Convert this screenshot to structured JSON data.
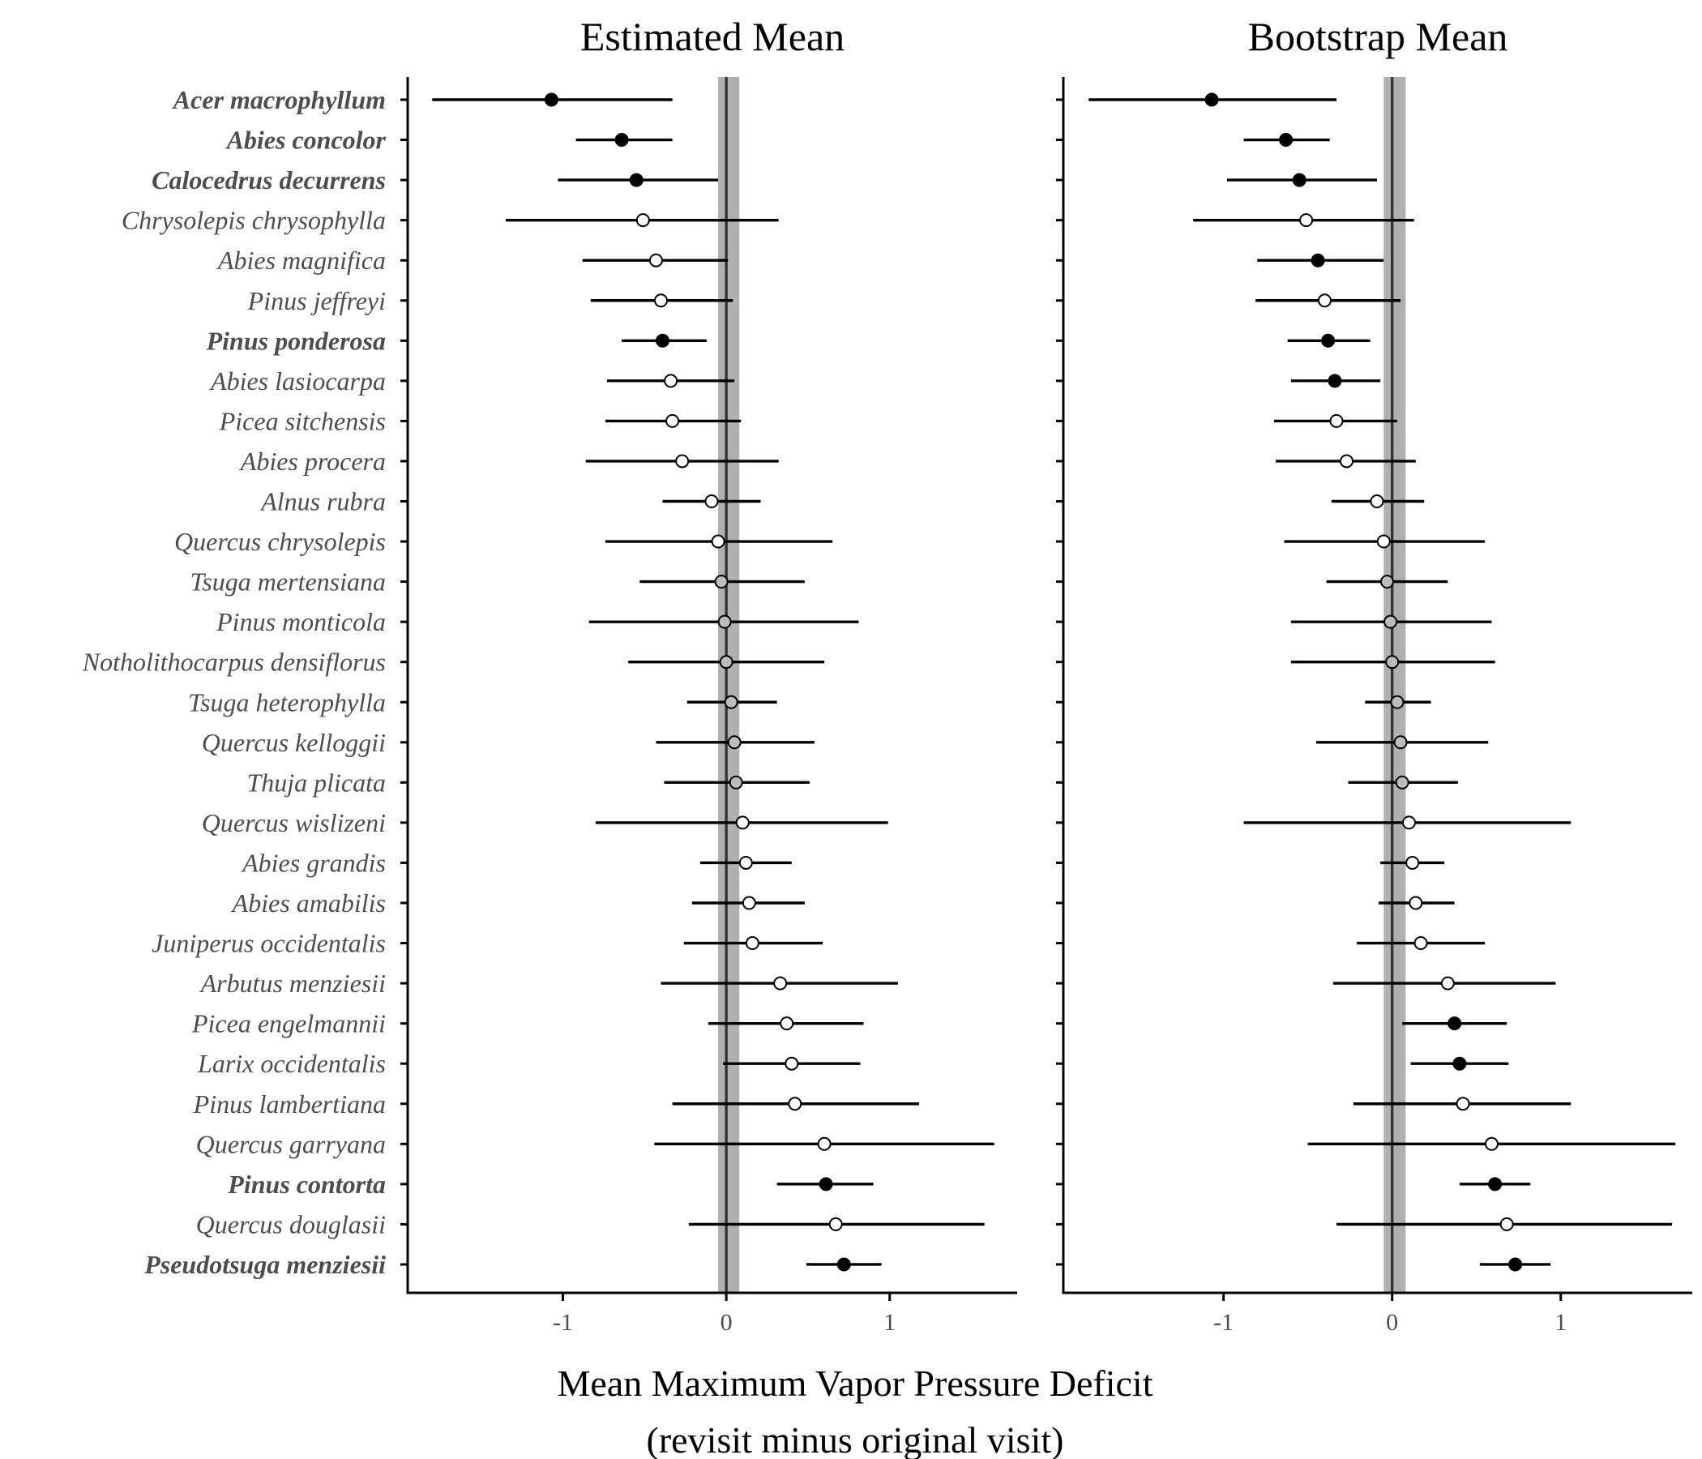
{
  "chart_data": {
    "type": "scatter",
    "subtype": "dot-and-whisker",
    "xlabel_lines": [
      "Mean Maximum Vapor Pressure Deficit",
      "(revisit minus original visit)"
    ],
    "xlim": [
      -1.95,
      1.78
    ],
    "xticks": [
      -1,
      0,
      1
    ],
    "xtick_labels": [
      "-1",
      "0",
      "1"
    ],
    "reference_band": [
      -0.05,
      0.08
    ],
    "reference_line": 0,
    "point_colors": {
      "filled": "#000000",
      "open": "#ffffff",
      "grey": "#bdbdbd"
    },
    "species": [
      {
        "name": "Acer macrophyllum",
        "bold": true
      },
      {
        "name": "Abies concolor",
        "bold": true
      },
      {
        "name": "Calocedrus decurrens",
        "bold": true
      },
      {
        "name": "Chrysolepis chrysophylla",
        "bold": false
      },
      {
        "name": "Abies magnifica",
        "bold": false
      },
      {
        "name": "Pinus jeffreyi",
        "bold": false
      },
      {
        "name": "Pinus ponderosa",
        "bold": true
      },
      {
        "name": "Abies lasiocarpa",
        "bold": false
      },
      {
        "name": "Picea sitchensis",
        "bold": false
      },
      {
        "name": "Abies procera",
        "bold": false
      },
      {
        "name": "Alnus rubra",
        "bold": false
      },
      {
        "name": "Quercus chrysolepis",
        "bold": false
      },
      {
        "name": "Tsuga mertensiana",
        "bold": false
      },
      {
        "name": "Pinus monticola",
        "bold": false
      },
      {
        "name": "Notholithocarpus densiflorus",
        "bold": false
      },
      {
        "name": "Tsuga heterophylla",
        "bold": false
      },
      {
        "name": "Quercus kelloggii",
        "bold": false
      },
      {
        "name": "Thuja plicata",
        "bold": false
      },
      {
        "name": "Quercus wislizeni",
        "bold": false
      },
      {
        "name": "Abies grandis",
        "bold": false
      },
      {
        "name": "Abies amabilis",
        "bold": false
      },
      {
        "name": "Juniperus occidentalis",
        "bold": false
      },
      {
        "name": "Arbutus menziesii",
        "bold": false
      },
      {
        "name": "Picea engelmannii",
        "bold": false
      },
      {
        "name": "Larix occidentalis",
        "bold": false
      },
      {
        "name": "Pinus lambertiana",
        "bold": false
      },
      {
        "name": "Quercus garryana",
        "bold": false
      },
      {
        "name": "Pinus contorta",
        "bold": true
      },
      {
        "name": "Quercus douglasii",
        "bold": false
      },
      {
        "name": "Pseudotsuga menziesii",
        "bold": true
      }
    ],
    "panels": [
      {
        "title": "Estimated Mean",
        "points": [
          {
            "mean": -1.07,
            "lo": -1.8,
            "hi": -0.33,
            "fill": "filled"
          },
          {
            "mean": -0.64,
            "lo": -0.92,
            "hi": -0.33,
            "fill": "filled"
          },
          {
            "mean": -0.55,
            "lo": -1.03,
            "hi": -0.05,
            "fill": "filled"
          },
          {
            "mean": -0.51,
            "lo": -1.35,
            "hi": 0.32,
            "fill": "open"
          },
          {
            "mean": -0.43,
            "lo": -0.88,
            "hi": 0.01,
            "fill": "open"
          },
          {
            "mean": -0.4,
            "lo": -0.83,
            "hi": 0.04,
            "fill": "open"
          },
          {
            "mean": -0.39,
            "lo": -0.64,
            "hi": -0.12,
            "fill": "filled"
          },
          {
            "mean": -0.34,
            "lo": -0.73,
            "hi": 0.05,
            "fill": "open"
          },
          {
            "mean": -0.33,
            "lo": -0.74,
            "hi": 0.09,
            "fill": "open"
          },
          {
            "mean": -0.27,
            "lo": -0.86,
            "hi": 0.32,
            "fill": "open"
          },
          {
            "mean": -0.09,
            "lo": -0.39,
            "hi": 0.21,
            "fill": "open"
          },
          {
            "mean": -0.05,
            "lo": -0.74,
            "hi": 0.65,
            "fill": "open"
          },
          {
            "mean": -0.03,
            "lo": -0.53,
            "hi": 0.48,
            "fill": "grey"
          },
          {
            "mean": -0.01,
            "lo": -0.84,
            "hi": 0.81,
            "fill": "grey"
          },
          {
            "mean": 0.0,
            "lo": -0.6,
            "hi": 0.6,
            "fill": "grey"
          },
          {
            "mean": 0.03,
            "lo": -0.24,
            "hi": 0.31,
            "fill": "grey"
          },
          {
            "mean": 0.05,
            "lo": -0.43,
            "hi": 0.54,
            "fill": "grey"
          },
          {
            "mean": 0.06,
            "lo": -0.38,
            "hi": 0.51,
            "fill": "grey"
          },
          {
            "mean": 0.1,
            "lo": -0.8,
            "hi": 0.99,
            "fill": "open"
          },
          {
            "mean": 0.12,
            "lo": -0.16,
            "hi": 0.4,
            "fill": "open"
          },
          {
            "mean": 0.14,
            "lo": -0.21,
            "hi": 0.48,
            "fill": "open"
          },
          {
            "mean": 0.16,
            "lo": -0.26,
            "hi": 0.59,
            "fill": "open"
          },
          {
            "mean": 0.33,
            "lo": -0.4,
            "hi": 1.05,
            "fill": "open"
          },
          {
            "mean": 0.37,
            "lo": -0.11,
            "hi": 0.84,
            "fill": "open"
          },
          {
            "mean": 0.4,
            "lo": -0.02,
            "hi": 0.82,
            "fill": "open"
          },
          {
            "mean": 0.42,
            "lo": -0.33,
            "hi": 1.18,
            "fill": "open"
          },
          {
            "mean": 0.6,
            "lo": -0.44,
            "hi": 1.64,
            "fill": "open"
          },
          {
            "mean": 0.61,
            "lo": 0.31,
            "hi": 0.9,
            "fill": "filled"
          },
          {
            "mean": 0.67,
            "lo": -0.23,
            "hi": 1.58,
            "fill": "open"
          },
          {
            "mean": 0.72,
            "lo": 0.49,
            "hi": 0.95,
            "fill": "filled"
          }
        ]
      },
      {
        "title": "Bootstrap Mean",
        "points": [
          {
            "mean": -1.07,
            "lo": -1.8,
            "hi": -0.33,
            "fill": "filled"
          },
          {
            "mean": -0.63,
            "lo": -0.88,
            "hi": -0.37,
            "fill": "filled"
          },
          {
            "mean": -0.55,
            "lo": -0.98,
            "hi": -0.09,
            "fill": "filled"
          },
          {
            "mean": -0.51,
            "lo": -1.18,
            "hi": 0.13,
            "fill": "open"
          },
          {
            "mean": -0.44,
            "lo": -0.8,
            "hi": -0.05,
            "fill": "filled"
          },
          {
            "mean": -0.4,
            "lo": -0.81,
            "hi": 0.05,
            "fill": "open"
          },
          {
            "mean": -0.38,
            "lo": -0.62,
            "hi": -0.13,
            "fill": "filled"
          },
          {
            "mean": -0.34,
            "lo": -0.6,
            "hi": -0.07,
            "fill": "filled"
          },
          {
            "mean": -0.33,
            "lo": -0.7,
            "hi": 0.03,
            "fill": "open"
          },
          {
            "mean": -0.27,
            "lo": -0.69,
            "hi": 0.14,
            "fill": "open"
          },
          {
            "mean": -0.09,
            "lo": -0.36,
            "hi": 0.19,
            "fill": "open"
          },
          {
            "mean": -0.05,
            "lo": -0.64,
            "hi": 0.55,
            "fill": "open"
          },
          {
            "mean": -0.03,
            "lo": -0.39,
            "hi": 0.33,
            "fill": "grey"
          },
          {
            "mean": -0.01,
            "lo": -0.6,
            "hi": 0.59,
            "fill": "grey"
          },
          {
            "mean": 0.0,
            "lo": -0.6,
            "hi": 0.61,
            "fill": "grey"
          },
          {
            "mean": 0.03,
            "lo": -0.16,
            "hi": 0.23,
            "fill": "grey"
          },
          {
            "mean": 0.05,
            "lo": -0.45,
            "hi": 0.57,
            "fill": "grey"
          },
          {
            "mean": 0.06,
            "lo": -0.26,
            "hi": 0.39,
            "fill": "grey"
          },
          {
            "mean": 0.1,
            "lo": -0.88,
            "hi": 1.06,
            "fill": "open"
          },
          {
            "mean": 0.12,
            "lo": -0.07,
            "hi": 0.31,
            "fill": "open"
          },
          {
            "mean": 0.14,
            "lo": -0.08,
            "hi": 0.37,
            "fill": "open"
          },
          {
            "mean": 0.17,
            "lo": -0.21,
            "hi": 0.55,
            "fill": "open"
          },
          {
            "mean": 0.33,
            "lo": -0.35,
            "hi": 0.97,
            "fill": "open"
          },
          {
            "mean": 0.37,
            "lo": 0.06,
            "hi": 0.68,
            "fill": "filled"
          },
          {
            "mean": 0.4,
            "lo": 0.11,
            "hi": 0.69,
            "fill": "filled"
          },
          {
            "mean": 0.42,
            "lo": -0.23,
            "hi": 1.06,
            "fill": "open"
          },
          {
            "mean": 0.59,
            "lo": -0.5,
            "hi": 1.68,
            "fill": "open"
          },
          {
            "mean": 0.61,
            "lo": 0.4,
            "hi": 0.82,
            "fill": "filled"
          },
          {
            "mean": 0.68,
            "lo": -0.33,
            "hi": 1.66,
            "fill": "open"
          },
          {
            "mean": 0.73,
            "lo": 0.52,
            "hi": 0.94,
            "fill": "filled"
          }
        ]
      }
    ]
  }
}
